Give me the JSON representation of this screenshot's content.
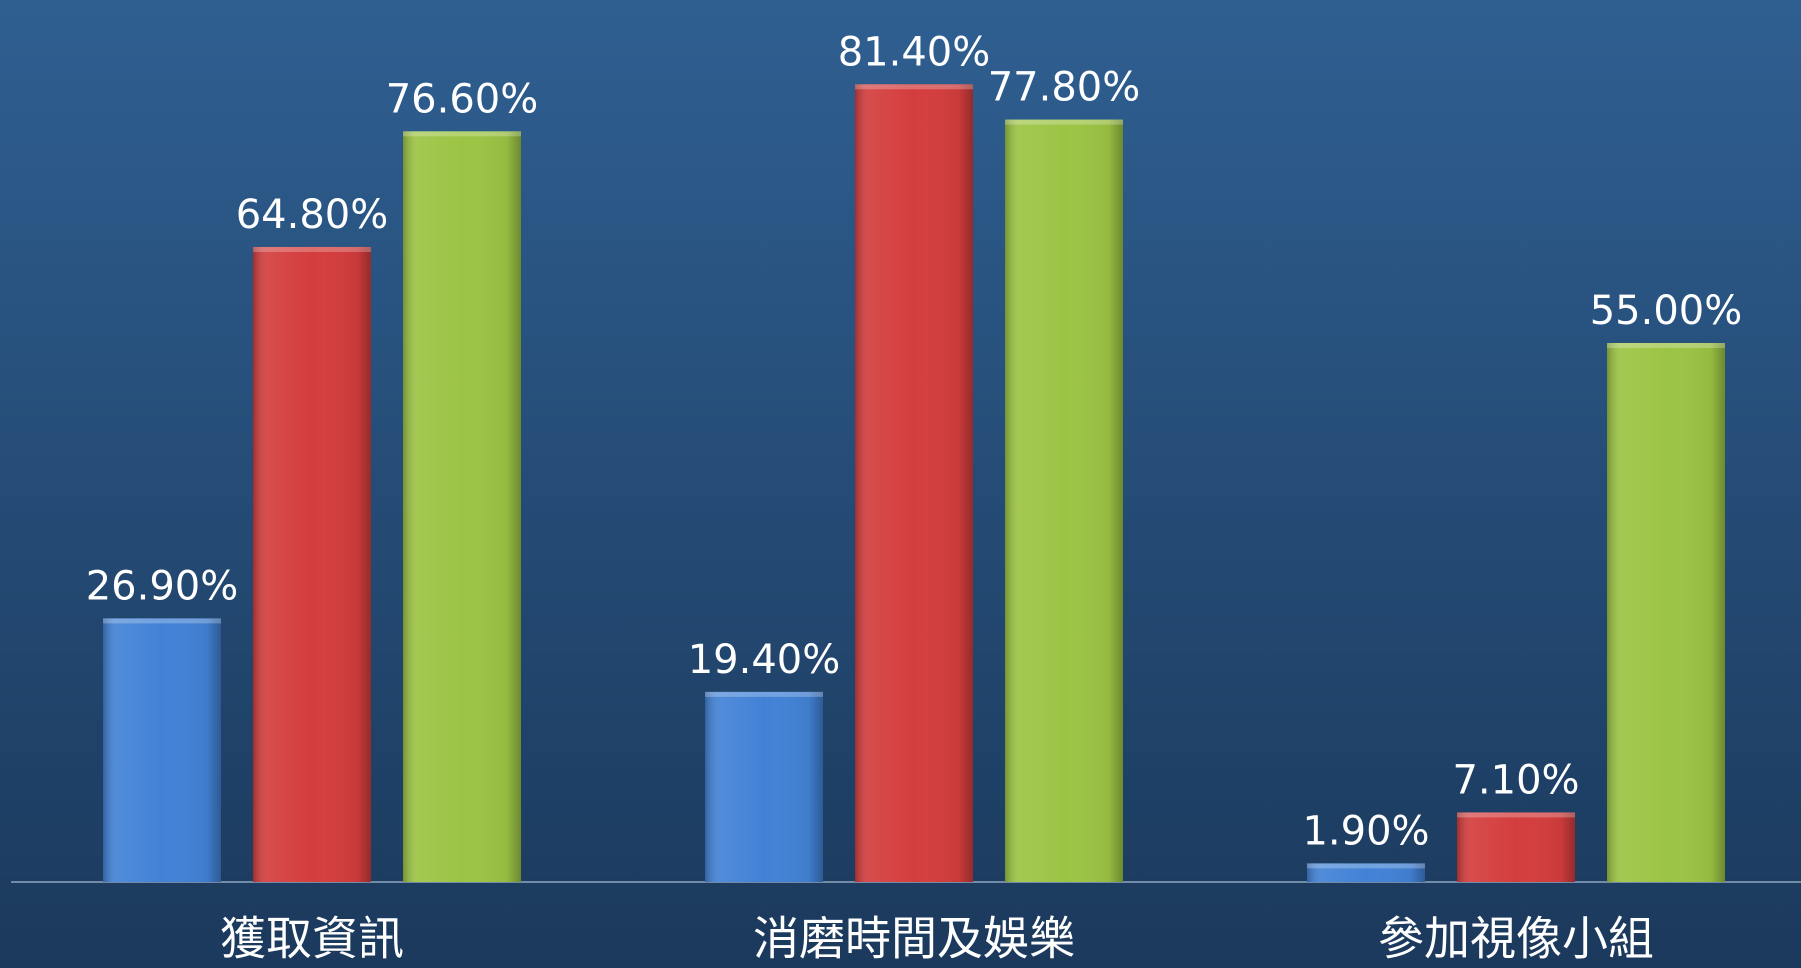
{
  "chart_data": {
    "type": "bar",
    "categories": [
      "獲取資訊",
      "消磨時間及娛樂",
      "參加視像小組"
    ],
    "series": [
      {
        "color": "#4282d6",
        "values": [
          26.9,
          19.4,
          1.9
        ],
        "value_labels": [
          "26.90%",
          "19.40%",
          "1.90%"
        ]
      },
      {
        "color": "#d43d3d",
        "values": [
          64.8,
          81.4,
          7.1
        ],
        "value_labels": [
          "64.80%",
          "81.40%",
          "7.10%"
        ]
      },
      {
        "color": "#9cc444",
        "values": [
          76.6,
          77.8,
          55.0
        ],
        "value_labels": [
          "76.60%",
          "77.80%",
          "55.00%"
        ]
      }
    ],
    "ylim": [
      0,
      90
    ]
  }
}
